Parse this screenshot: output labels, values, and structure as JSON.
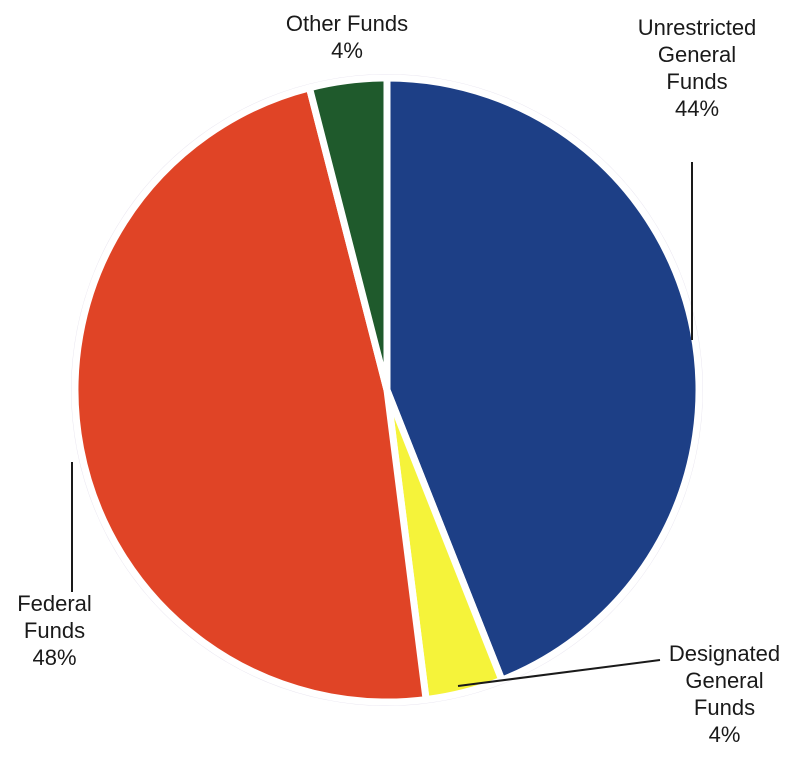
{
  "chart_data": {
    "type": "pie",
    "title": "",
    "slices": [
      {
        "label": "Unrestricted General Funds",
        "label_lines": [
          "Unrestricted",
          "General",
          "Funds"
        ],
        "value": 44,
        "value_text": "44%",
        "color": "#1d3f86"
      },
      {
        "label": "Designated General Funds",
        "label_lines": [
          "Designated",
          "General",
          "Funds"
        ],
        "value": 4,
        "value_text": "4%",
        "color": "#f5f33a"
      },
      {
        "label": "Federal Funds",
        "label_lines": [
          "Federal",
          "Funds"
        ],
        "value": 48,
        "value_text": "48%",
        "color": "#e04426"
      },
      {
        "label": "Other Funds",
        "label_lines": [
          "Other Funds"
        ],
        "value": 4,
        "value_text": "4%",
        "color": "#1f5a2c"
      }
    ]
  }
}
